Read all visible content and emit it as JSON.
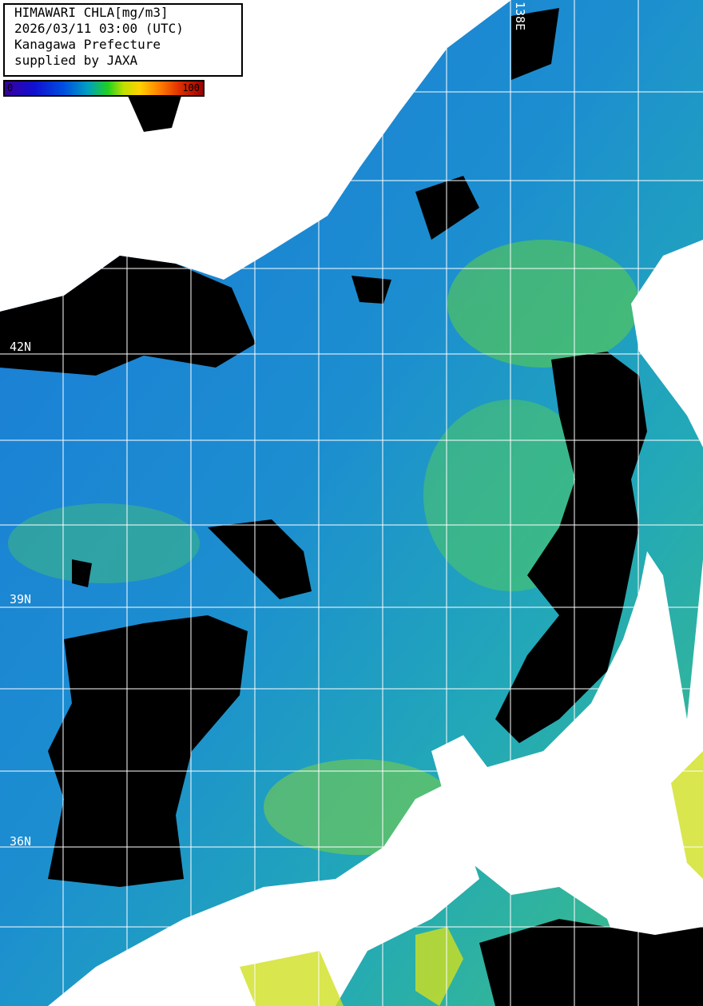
{
  "legend": {
    "lines": [
      "HIMAWARI CHLA[mg/m3]",
      "2026/03/11 03:00 (UTC)",
      "Kanagawa Prefecture",
      "supplied by JAXA"
    ],
    "colorbar_min": "0",
    "colorbar_max": "100"
  },
  "grid_labels": {
    "lat": [
      "42N",
      "39N",
      "36N"
    ],
    "lon": [
      "138E"
    ]
  },
  "colors": {
    "ocean": "#1e8fd0",
    "cloud": "#000000",
    "land": "#ffffff",
    "grid": "#ffffff"
  }
}
